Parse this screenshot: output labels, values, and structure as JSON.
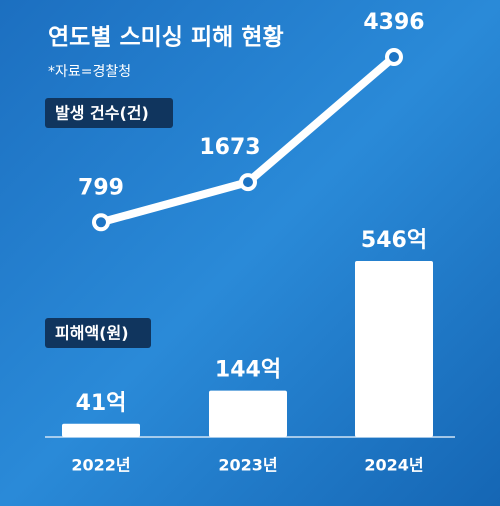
{
  "title": "연도별 스미싱 피해 현황",
  "source": "*자료=경찰청",
  "chart_data": [
    {
      "type": "line",
      "label": "발생 건수(건)",
      "values": [
        799,
        1673,
        4396
      ],
      "color": "#ffffff"
    },
    {
      "type": "bar",
      "label": "피해액(원)",
      "categories": [
        "2022년",
        "2023년",
        "2024년"
      ],
      "values": [
        41,
        144,
        546
      ],
      "value_labels": [
        "41억",
        "144억",
        "546억"
      ],
      "color": "#ffffff"
    }
  ]
}
